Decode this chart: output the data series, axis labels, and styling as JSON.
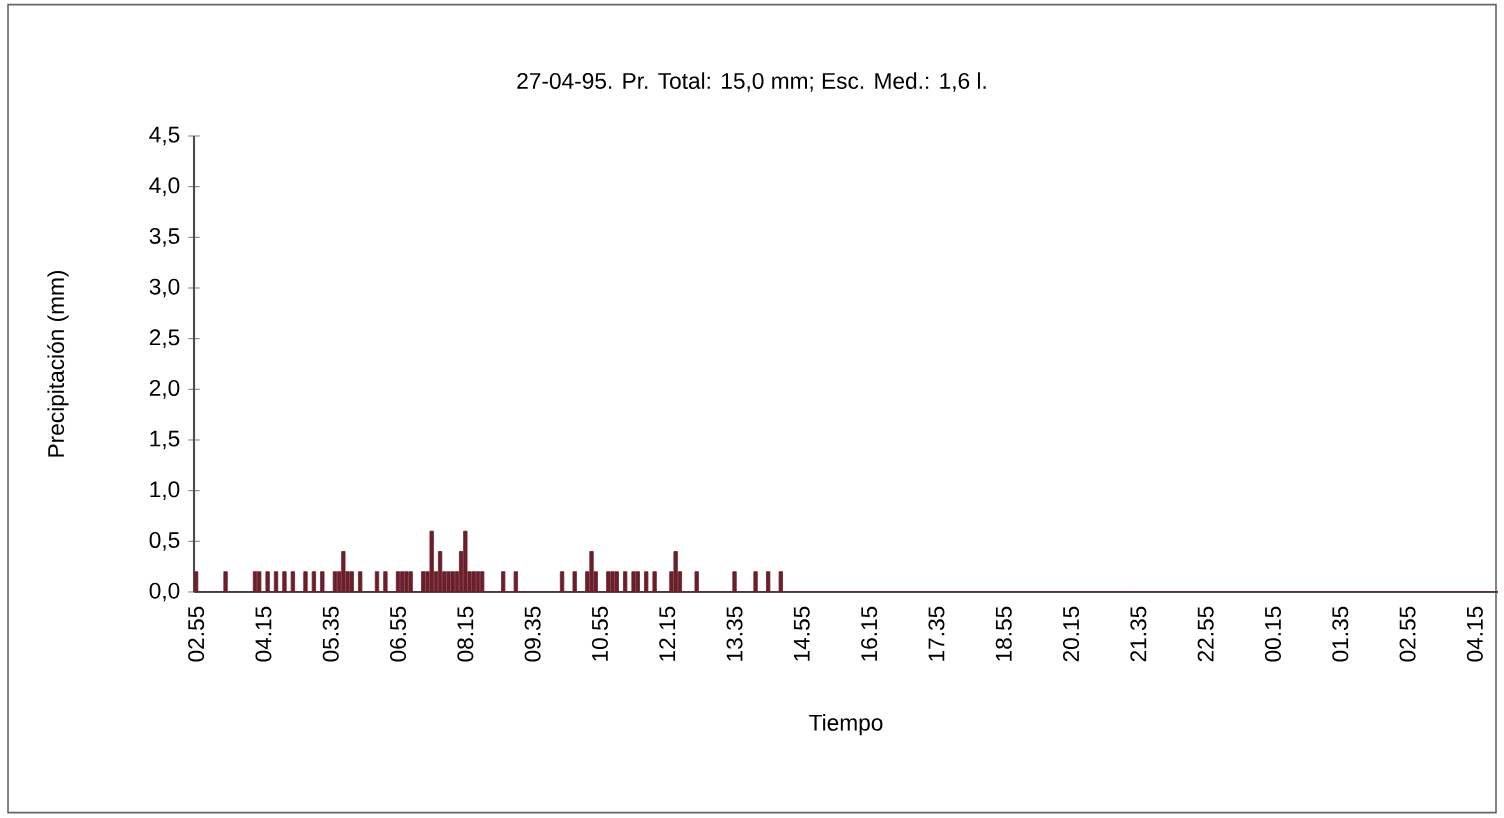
{
  "chart_data": {
    "type": "bar",
    "title": "27-04-95. Pr. Total: 15,0 mm; Esc. Med.: 1,6 l.",
    "xlabel": "Tiempo",
    "ylabel": "Precipitación (mm)",
    "color": "#6b1f2a",
    "categories": [
      "02.55",
      null,
      null,
      null,
      null,
      null,
      null,
      null,
      null,
      null,
      null,
      null,
      null,
      null,
      null,
      null,
      "04.15",
      null,
      null,
      null,
      null,
      null,
      null,
      null,
      null,
      null,
      null,
      null,
      null,
      null,
      null,
      null,
      "05.35",
      null,
      null,
      null,
      null,
      null,
      null,
      null,
      null,
      null,
      null,
      null,
      null,
      null,
      null,
      null,
      "06.55",
      null,
      null,
      null,
      null,
      null,
      null,
      null,
      null,
      null,
      null,
      null,
      null,
      null,
      null,
      null,
      "08.15",
      null,
      null,
      null,
      null,
      null,
      null,
      null,
      null,
      null,
      null,
      null,
      null,
      null,
      null,
      null,
      "09.35",
      null,
      null,
      null,
      null,
      null,
      null,
      null,
      null,
      null,
      null,
      null,
      null,
      null,
      null,
      null,
      "10.55",
      null,
      null,
      null,
      null,
      null,
      null,
      null,
      null,
      null,
      null,
      null,
      null,
      null,
      null,
      null,
      "12.15",
      null,
      null,
      null,
      null,
      null,
      null,
      null,
      null,
      null,
      null,
      null,
      null,
      null,
      null,
      null,
      "13.35",
      null,
      null,
      null,
      null,
      null,
      null,
      null,
      null,
      null,
      null,
      null,
      null,
      null,
      null,
      null,
      "14.55",
      null,
      null,
      null,
      null,
      null,
      null,
      null,
      null,
      null,
      null,
      null,
      null,
      null,
      null,
      null,
      "16.15",
      null,
      null,
      null,
      null,
      null,
      null,
      null,
      null,
      null,
      null,
      null,
      null,
      null,
      null,
      null,
      "17.35",
      null,
      null,
      null,
      null,
      null,
      null,
      null,
      null,
      null,
      null,
      null,
      null,
      null,
      null,
      null,
      "18.55",
      null,
      null,
      null,
      null,
      null,
      null,
      null,
      null,
      null,
      null,
      null,
      null,
      null,
      null,
      null,
      "20.15",
      null,
      null,
      null,
      null,
      null,
      null,
      null,
      null,
      null,
      null,
      null,
      null,
      null,
      null,
      null,
      "21.35",
      null,
      null,
      null,
      null,
      null,
      null,
      null,
      null,
      null,
      null,
      null,
      null,
      null,
      null,
      null,
      "22.55",
      null,
      null,
      null,
      null,
      null,
      null,
      null,
      null,
      null,
      null,
      null,
      null,
      null,
      null,
      null,
      "00.15",
      null,
      null,
      null,
      null,
      null,
      null,
      null,
      null,
      null,
      null,
      null,
      null,
      null,
      null,
      null,
      "01.35",
      null,
      null,
      null,
      null,
      null,
      null,
      null,
      null,
      null,
      null,
      null,
      null,
      null,
      null,
      null,
      "02.55",
      null,
      null,
      null,
      null,
      null,
      null,
      null,
      null,
      null,
      null,
      null,
      null,
      null,
      null,
      null,
      "04.15",
      null,
      null,
      null,
      null,
      null
    ],
    "values": [
      0.2,
      0,
      0,
      0,
      0,
      0,
      0,
      0.2,
      0,
      0,
      0,
      0,
      0,
      0,
      0.2,
      0.2,
      0,
      0.2,
      0,
      0.2,
      0,
      0.2,
      0,
      0.2,
      0,
      0,
      0.2,
      0,
      0.2,
      0,
      0.2,
      0,
      0,
      0.2,
      0.2,
      0.4,
      0.2,
      0.2,
      0,
      0.2,
      0,
      0,
      0,
      0.2,
      0,
      0.2,
      0,
      0,
      0.2,
      0.2,
      0.2,
      0.2,
      0,
      0,
      0.2,
      0.2,
      0.6,
      0.2,
      0.4,
      0.2,
      0.2,
      0.2,
      0.2,
      0.4,
      0.6,
      0.2,
      0.2,
      0.2,
      0.2,
      0,
      0,
      0,
      0,
      0.2,
      0,
      0,
      0.2,
      0,
      0,
      0,
      0,
      0,
      0,
      0,
      0,
      0,
      0,
      0.2,
      0,
      0,
      0.2,
      0,
      0,
      0.2,
      0.4,
      0.2,
      0,
      0,
      0.2,
      0.2,
      0.2,
      0,
      0.2,
      0,
      0.2,
      0.2,
      0,
      0.2,
      0,
      0.2,
      0,
      0,
      0,
      0.2,
      0.4,
      0.2,
      0,
      0,
      0,
      0.2,
      0,
      0,
      0,
      0,
      0,
      0,
      0,
      0,
      0.2,
      0,
      0,
      0,
      0,
      0.2,
      0,
      0,
      0.2,
      0,
      0,
      0.2,
      0,
      0,
      0,
      0,
      0,
      0,
      0,
      0,
      0,
      0,
      0,
      0,
      0,
      0,
      0,
      0,
      0,
      0,
      0,
      0,
      0,
      0,
      0,
      0,
      0,
      0,
      0,
      0,
      0,
      0,
      0,
      0,
      0,
      0,
      0,
      0,
      0,
      0,
      0,
      0,
      0,
      0,
      0,
      0,
      0,
      0,
      0,
      0,
      0,
      0,
      0,
      0,
      0,
      0,
      0,
      0,
      0,
      0,
      0,
      0,
      0,
      0,
      0,
      0,
      0,
      0,
      0,
      0,
      0,
      0,
      0,
      0,
      0,
      0,
      0,
      0,
      0,
      0,
      0,
      0,
      0,
      0,
      0,
      0,
      0,
      0,
      0,
      0,
      0,
      0,
      0,
      0,
      0,
      0,
      0,
      0,
      0,
      0,
      0,
      0,
      0,
      0,
      0,
      0,
      0,
      0,
      0,
      0,
      0,
      0,
      0,
      0,
      0,
      0,
      0,
      0,
      0,
      0,
      0,
      0,
      0,
      0,
      0,
      0,
      0,
      0,
      0,
      0,
      0,
      0,
      0,
      0,
      0,
      0,
      0,
      0,
      0,
      0,
      0,
      0,
      0,
      0,
      0,
      0,
      0,
      0,
      0,
      0,
      0,
      0,
      0,
      0,
      0,
      0,
      0,
      0,
      0,
      0,
      0,
      0,
      0,
      0,
      0,
      0,
      0,
      0,
      0,
      0,
      0,
      0
    ],
    "ylim": [
      0,
      4.5
    ],
    "yticks": [
      {
        "value": 0,
        "label": "0,0"
      },
      {
        "value": 0.5,
        "label": "0,5"
      },
      {
        "value": 1,
        "label": "1,0"
      },
      {
        "value": 1.5,
        "label": "1,5"
      },
      {
        "value": 2,
        "label": "2,0"
      },
      {
        "value": 2.5,
        "label": "2,5"
      },
      {
        "value": 3,
        "label": "3,0"
      },
      {
        "value": 3.5,
        "label": "3,5"
      },
      {
        "value": 4,
        "label": "4,0"
      },
      {
        "value": 4.5,
        "label": "4,5"
      }
    ]
  }
}
